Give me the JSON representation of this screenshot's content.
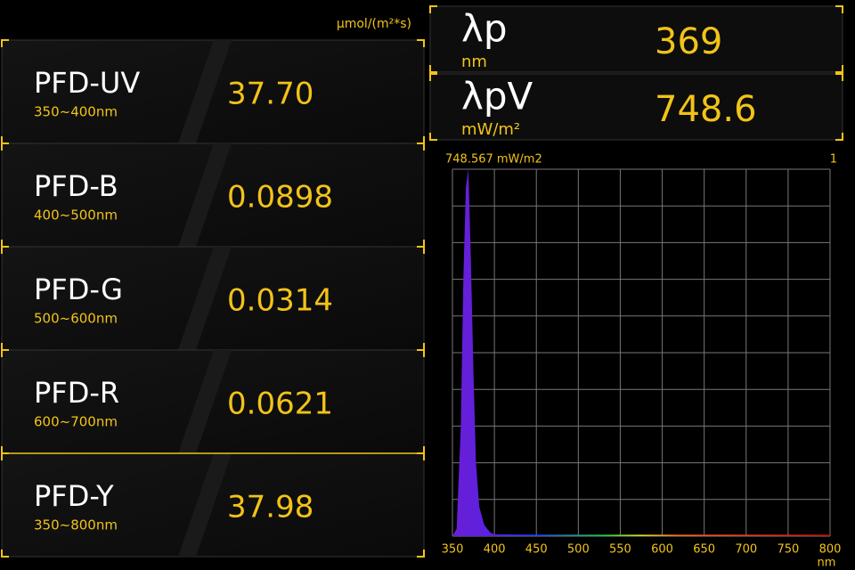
{
  "unit_label": "µmol/(m²*s)",
  "panels": [
    {
      "name": "PFD-UV",
      "range": "350~400nm",
      "value": "37.70"
    },
    {
      "name": "PFD-B",
      "range": "400~500nm",
      "value": "0.0898"
    },
    {
      "name": "PFD-G",
      "range": "500~600nm",
      "value": "0.0314"
    },
    {
      "name": "PFD-R",
      "range": "600~700nm",
      "value": "0.0621"
    },
    {
      "name": "PFD-Y",
      "range": "350~800nm",
      "value": "37.98"
    }
  ],
  "peaks": [
    {
      "symbol": "λp",
      "unit": "nm",
      "value": "369"
    },
    {
      "symbol": "λpV",
      "unit": "mW/m²",
      "value": "748.6"
    }
  ],
  "chart_data": {
    "type": "area",
    "max_label": "748.567  mW/m2",
    "scale_label": "1",
    "x_unit": "nm",
    "xlim": [
      350,
      800
    ],
    "xticks": [
      350,
      400,
      450,
      500,
      550,
      600,
      650,
      700,
      750,
      800
    ],
    "ylim": [
      0,
      1
    ],
    "x": [
      350,
      355,
      360,
      363,
      366,
      369,
      372,
      375,
      378,
      382,
      388,
      395,
      400,
      450,
      500,
      550,
      600,
      650,
      700,
      750,
      800
    ],
    "values": [
      0,
      0.02,
      0.3,
      0.7,
      0.95,
      1,
      0.75,
      0.45,
      0.2,
      0.08,
      0.03,
      0.01,
      0.005,
      0.004,
      0.004,
      0.004,
      0.004,
      0.004,
      0.004,
      0.004,
      0.004
    ]
  }
}
